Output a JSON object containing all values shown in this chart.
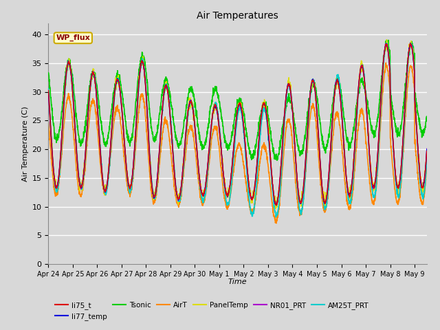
{
  "title": "Air Temperatures",
  "xlabel": "Time",
  "ylabel": "Air Temperature (C)",
  "ylim": [
    0,
    42
  ],
  "yticks": [
    0,
    5,
    10,
    15,
    20,
    25,
    30,
    35,
    40
  ],
  "series": {
    "li75_t": {
      "color": "#dd0000",
      "lw": 1.0
    },
    "li77_temp": {
      "color": "#0000dd",
      "lw": 1.0
    },
    "Tsonic": {
      "color": "#00cc00",
      "lw": 1.2
    },
    "AirT": {
      "color": "#ff8800",
      "lw": 1.2
    },
    "PanelTemp": {
      "color": "#dddd00",
      "lw": 1.0
    },
    "NR01_PRT": {
      "color": "#aa00cc",
      "lw": 1.0
    },
    "AM25T_PRT": {
      "color": "#00cccc",
      "lw": 1.2
    }
  },
  "tick_labels": [
    "Apr 24",
    "Apr 25",
    "Apr 26",
    "Apr 27",
    "Apr 28",
    "Apr 29",
    "Apr 30",
    "May 1",
    "May 2",
    "May 3",
    "May 4",
    "May 5",
    "May 6",
    "May 7",
    "May 8",
    "May 9"
  ],
  "annotation_text": "WP_flux",
  "bg_color": "#d8d8d8",
  "plot_bg_color": "#d8d8d8",
  "grid_color": "white",
  "figsize": [
    6.4,
    4.8
  ],
  "dpi": 100,
  "daily_peaks_main": [
    36,
    35,
    33,
    32,
    36,
    30,
    28,
    27.5,
    28,
    28,
    32,
    32,
    32,
    35,
    39
  ],
  "daily_troughs_main": [
    13,
    14,
    12,
    14,
    12,
    11,
    12,
    12,
    12,
    10,
    11,
    10,
    12,
    12,
    16
  ],
  "daily_peaks_tsonic": [
    37,
    35,
    33,
    33,
    37,
    31,
    30.5,
    30.5,
    28,
    28,
    29,
    32,
    32,
    32,
    39.5
  ],
  "daily_troughs_tsonic": [
    22,
    21,
    21,
    21,
    22,
    21,
    20,
    21,
    19,
    18,
    19,
    20,
    20,
    22,
    24
  ],
  "daily_peaks_airt": [
    30,
    29,
    28.5,
    27,
    30,
    24,
    24,
    24,
    20,
    21,
    26,
    28,
    26,
    27,
    36
  ],
  "daily_troughs_airt": [
    12,
    12,
    12,
    13,
    11,
    10,
    11,
    10,
    10,
    7,
    8.5,
    9,
    10,
    9,
    14
  ],
  "daily_peaks_am25": [
    36,
    35,
    33,
    32,
    36,
    30,
    28,
    28,
    27,
    27,
    32,
    32,
    33,
    35,
    39
  ],
  "daily_troughs_am25": [
    12,
    14,
    12,
    13,
    12,
    11,
    11,
    11,
    9,
    8,
    9,
    9,
    11,
    10,
    15
  ]
}
